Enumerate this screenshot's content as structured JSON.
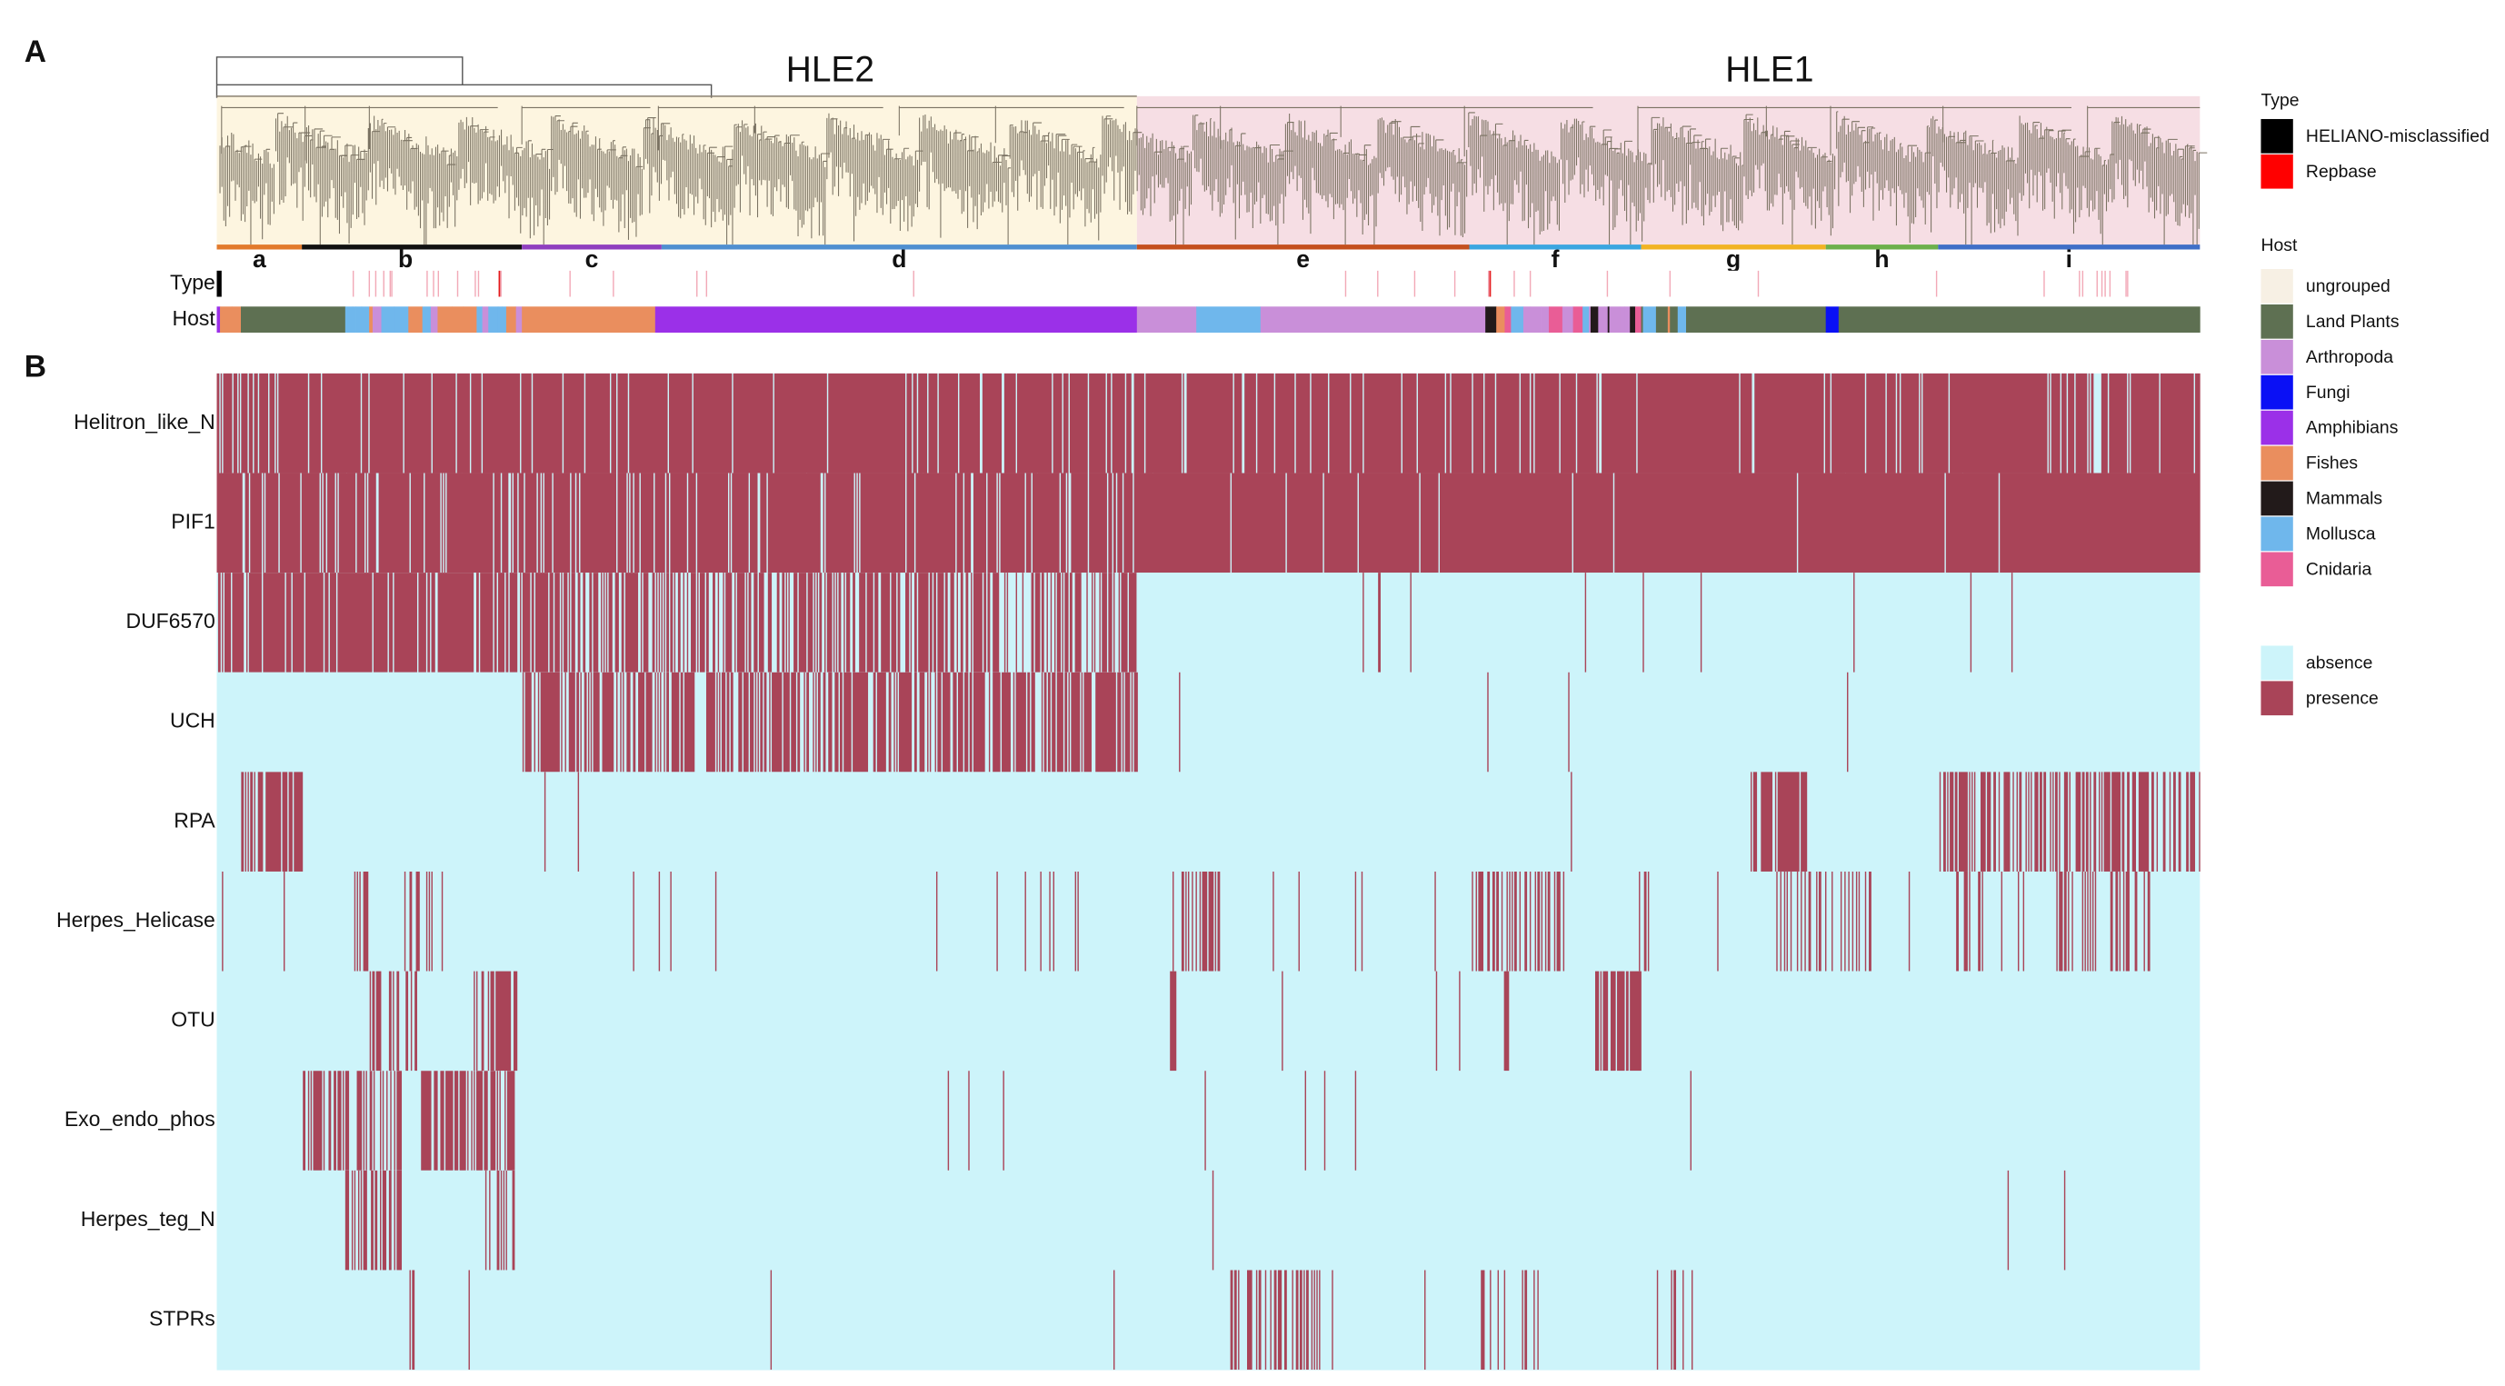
{
  "panels": {
    "a": "A",
    "b": "B"
  },
  "groups": {
    "left": "HLE2",
    "right": "HLE1"
  },
  "clades": [
    "a",
    "b",
    "c",
    "d",
    "e",
    "f",
    "g",
    "h",
    "i"
  ],
  "tracks": {
    "type": "Type",
    "host": "Host"
  },
  "rows": [
    "Helitron_like_N",
    "PIF1",
    "DUF6570",
    "UCH",
    "RPA",
    "Herpes_Helicase",
    "OTU",
    "Exo_endo_phos",
    "Herpes_teg_N",
    "STPRs"
  ],
  "legend": {
    "type_title": "Type",
    "type_items": [
      "HELIANO-misclassified",
      "Repbase"
    ],
    "host_title": "Host",
    "host_items": [
      "ungrouped",
      "Land   Plants",
      "Arthropoda",
      "Fungi",
      "Amphibians",
      "Fishes",
      "Mammals",
      "Mollusca",
      "Cnidaria"
    ],
    "state_items": [
      "absence",
      "presence"
    ]
  }
}
